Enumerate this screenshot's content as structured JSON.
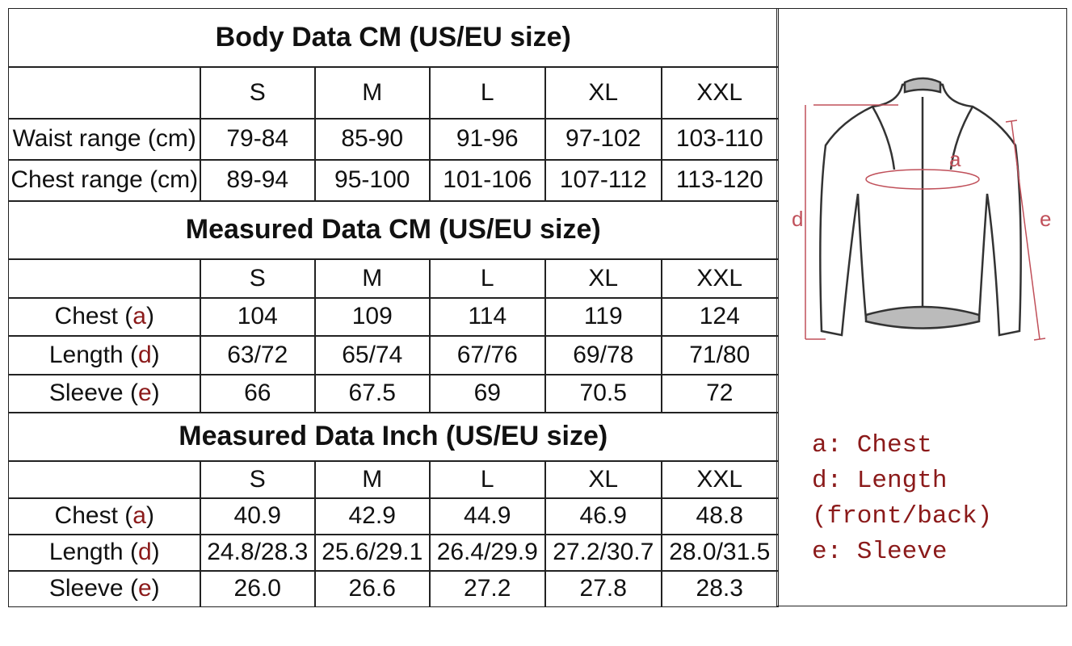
{
  "sections": [
    {
      "title": "Body Data CM (US/EU size)",
      "sizes": [
        "S",
        "M",
        "L",
        "XL",
        "XXL"
      ],
      "rows": [
        {
          "label": [
            "Waist range (cm)"
          ],
          "values": [
            "79-84",
            "85-90",
            "91-96",
            "97-102",
            "103-110"
          ]
        },
        {
          "label": [
            "Chest range (cm)"
          ],
          "values": [
            "89-94",
            "95-100",
            "101-106",
            "107-112",
            "113-120"
          ]
        }
      ]
    },
    {
      "title": "Measured Data CM (US/EU size)",
      "sizes": [
        "S",
        "M",
        "L",
        "XL",
        "XXL"
      ],
      "rows": [
        {
          "label": [
            "Chest (",
            "a",
            ")"
          ],
          "values": [
            "104",
            "109",
            "114",
            "119",
            "124"
          ]
        },
        {
          "label": [
            "Length (",
            "d",
            ")"
          ],
          "values": [
            "63/72",
            "65/74",
            "67/76",
            "69/78",
            "71/80"
          ]
        },
        {
          "label": [
            "Sleeve (",
            "e",
            ")"
          ],
          "values": [
            "66",
            "67.5",
            "69",
            "70.5",
            "72"
          ]
        }
      ]
    },
    {
      "title": "Measured Data Inch (US/EU size)",
      "sizes": [
        "S",
        "M",
        "L",
        "XL",
        "XXL"
      ],
      "rows": [
        {
          "label": [
            "Chest (",
            "a",
            ")"
          ],
          "values": [
            "40.9",
            "42.9",
            "44.9",
            "46.9",
            "48.8"
          ]
        },
        {
          "label": [
            "Length (",
            "d",
            ")"
          ],
          "values": [
            "24.8/28.3",
            "25.6/29.1",
            "26.4/29.9",
            "27.2/30.7",
            "28.0/31.5"
          ]
        },
        {
          "label": [
            "Sleeve (",
            "e",
            ")"
          ],
          "values": [
            "26.0",
            "26.6",
            "27.2",
            "27.8",
            "28.3"
          ]
        }
      ]
    }
  ],
  "diagram_labels": [
    "a",
    "d",
    "e"
  ],
  "legend": [
    "a: Chest",
    "d: Length",
    "(front/back)",
    "e: Sleeve"
  ]
}
